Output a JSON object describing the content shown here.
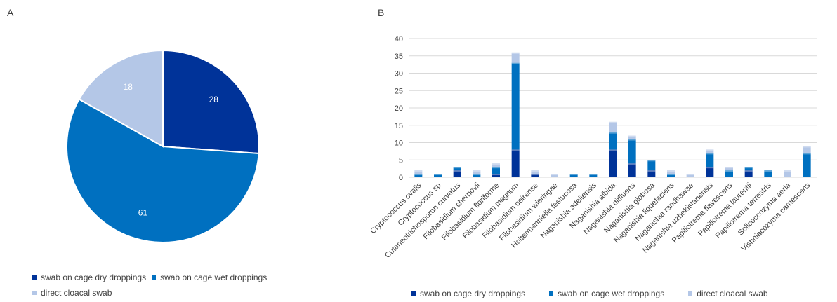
{
  "panels": {
    "a_label": "A",
    "b_label": "B"
  },
  "colors": {
    "dry": "#003399",
    "wet": "#0070C0",
    "cloacal": "#B4C7E7"
  },
  "chart_data": [
    {
      "type": "pie",
      "title": "",
      "slices": [
        {
          "name": "swab on cage dry droppings",
          "value": 28
        },
        {
          "name": "swab on cage wet droppings",
          "value": 61
        },
        {
          "name": "direct cloacal swab",
          "value": 18
        }
      ],
      "legend": "bottom"
    },
    {
      "type": "bar",
      "stacked": true,
      "categories": [
        "Cryptococcus ovalis",
        "Cryptococcus sp",
        "Cutaneotrichosporon curvatus",
        "Filobasidium chernovii",
        "Filobasidium floriforme",
        "Filobasidium magnum",
        "Filobasidium oeirense",
        "Filobasidium wieringae",
        "Holtermanniella festucosa",
        "Naganishia adeliensis",
        "Naganishia albida",
        "Naganishia diffluens",
        "Naganishia globosa",
        "Naganishia liquefaciens",
        "Naganishia randhawae",
        "Naganishia uzbekistanensis",
        "Papiliotrema flavescens",
        "Papiliotrema laurentii",
        "Papiliotrema terrestris",
        "Solicoccozyma aeria",
        "Vishniacozyma carnescens"
      ],
      "series": [
        {
          "name": "swab on cage dry droppings",
          "values": [
            0,
            0,
            2,
            0,
            1,
            8,
            1,
            0,
            0,
            0,
            8,
            4,
            2,
            0,
            0,
            3,
            0,
            2,
            0,
            0,
            0
          ]
        },
        {
          "name": "swab on cage wet droppings",
          "values": [
            1,
            1,
            1,
            1,
            2,
            25,
            0,
            0,
            1,
            1,
            5,
            7,
            3,
            1,
            0,
            4,
            2,
            1,
            2,
            0,
            7
          ]
        },
        {
          "name": "direct cloacal swab",
          "values": [
            1,
            0,
            0,
            1,
            1,
            3,
            1,
            1,
            0,
            0,
            3,
            1,
            0,
            1,
            1,
            1,
            1,
            0,
            0,
            2,
            2
          ]
        }
      ],
      "yticks": [
        0,
        5,
        10,
        15,
        20,
        25,
        30,
        35,
        40
      ],
      "ylim": [
        0,
        40
      ],
      "grid": true,
      "legend": "bottom"
    }
  ]
}
